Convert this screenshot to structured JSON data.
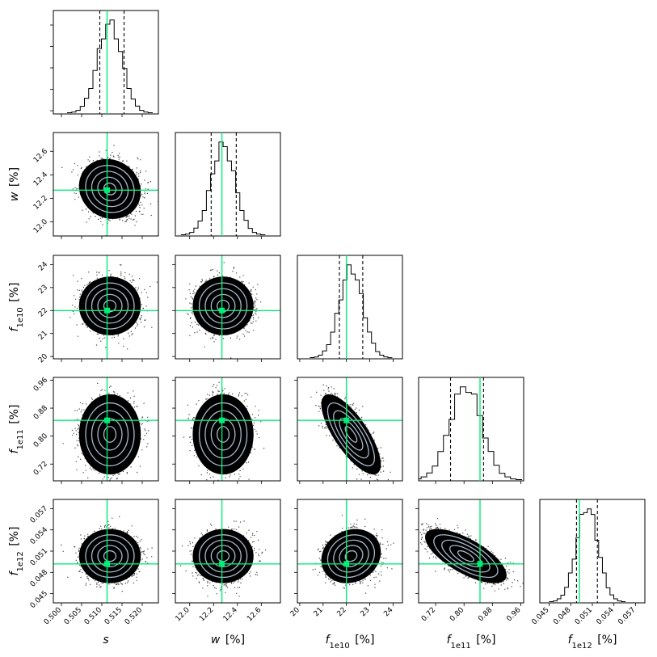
{
  "chart_data": {
    "type": "corner",
    "title": "",
    "parameters": [
      {
        "key": "s",
        "label_main": "s",
        "label_sub": "",
        "label_unit": "",
        "range": [
          0.498,
          0.524
        ],
        "ticks": [
          "0.500",
          "0.505",
          "0.510",
          "0.515",
          "0.520"
        ],
        "tick_values": [
          0.5,
          0.505,
          0.51,
          0.515,
          0.52
        ],
        "truth": 0.5113,
        "mean": 0.512,
        "q16": 0.5095,
        "q84": 0.5155,
        "sigma": 0.003
      },
      {
        "key": "w",
        "label_main": "w",
        "label_sub": "",
        "label_unit": "[%]",
        "range": [
          11.88,
          12.76
        ],
        "ticks": [
          "12.0",
          "12.2",
          "12.4",
          "12.6"
        ],
        "tick_values": [
          12.0,
          12.2,
          12.4,
          12.6
        ],
        "truth": 12.27,
        "mean": 12.28,
        "q16": 12.18,
        "q84": 12.39,
        "sigma": 0.1
      },
      {
        "key": "f1e10",
        "label_main": "f",
        "label_sub": "1e10",
        "label_unit": "[%]",
        "range": [
          19.9,
          24.4
        ],
        "ticks": [
          "20",
          "21",
          "22",
          "23",
          "24"
        ],
        "tick_values": [
          20,
          21,
          22,
          23,
          24
        ],
        "truth": 22.0,
        "mean": 22.2,
        "q16": 21.7,
        "q84": 22.7,
        "sigma": 0.5
      },
      {
        "key": "f1e11",
        "label_main": "f",
        "label_sub": "1e11",
        "label_unit": "[%]",
        "range": [
          0.672,
          0.968
        ],
        "ticks": [
          "0.72",
          "0.80",
          "0.88",
          "0.96"
        ],
        "tick_values": [
          0.72,
          0.8,
          0.88,
          0.96
        ],
        "truth": 0.845,
        "mean": 0.805,
        "q16": 0.762,
        "q84": 0.855,
        "sigma": 0.045
      },
      {
        "key": "f1e12",
        "label_main": "f",
        "label_sub": "1e12",
        "label_unit": "[%]",
        "range": [
          0.0437,
          0.0583
        ],
        "ticks": [
          "0.045",
          "0.048",
          "0.051",
          "0.054",
          "0.057"
        ],
        "tick_values": [
          0.045,
          0.048,
          0.051,
          0.054,
          0.057
        ],
        "truth": 0.0492,
        "mean": 0.0503,
        "q16": 0.0488,
        "q84": 0.0517,
        "sigma": 0.0015
      }
    ],
    "correlations": {
      "f1e10_f1e11": -0.75,
      "f1e11_f1e12": -0.7,
      "f1e10_f1e12": 0.15,
      "s_w": -0.1
    },
    "histogram_bins": 20,
    "truth_color": "#00ee77",
    "contour_color": "#a8b8cc",
    "scatter_color": "#000000",
    "quantile_line_style": "dashed"
  }
}
